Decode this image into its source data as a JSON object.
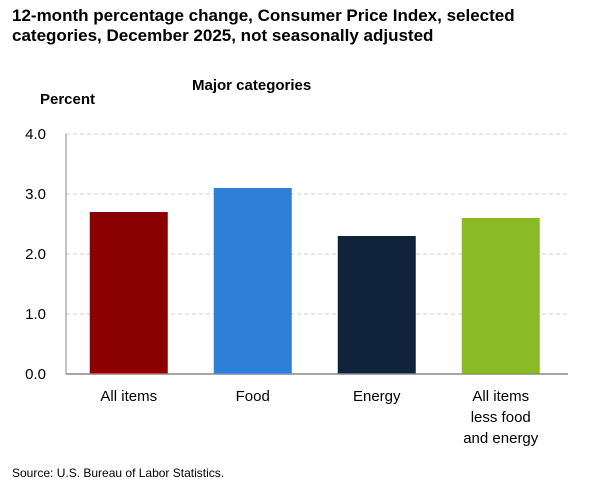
{
  "chart_data": {
    "type": "bar",
    "title": "12-month percentage change, Consumer Price Index, selected categories, December 2025, not seasonally adjusted",
    "subtitle": "Major categories",
    "ylabel": "Percent",
    "xlabel": "",
    "categories": [
      [
        "All items"
      ],
      [
        "Food"
      ],
      [
        "Energy"
      ],
      [
        "All items",
        "less food",
        "and energy"
      ]
    ],
    "values": [
      2.7,
      3.1,
      2.3,
      2.6
    ],
    "colors": [
      "#8b0000",
      "#2e7fd6",
      "#0f243a",
      "#8aba25"
    ],
    "ylim": [
      0,
      4
    ],
    "yticks": [
      "0.0",
      "1.0",
      "2.0",
      "3.0",
      "4.0"
    ],
    "grid": true,
    "source": "Source: U.S. Bureau of Labor Statistics."
  }
}
